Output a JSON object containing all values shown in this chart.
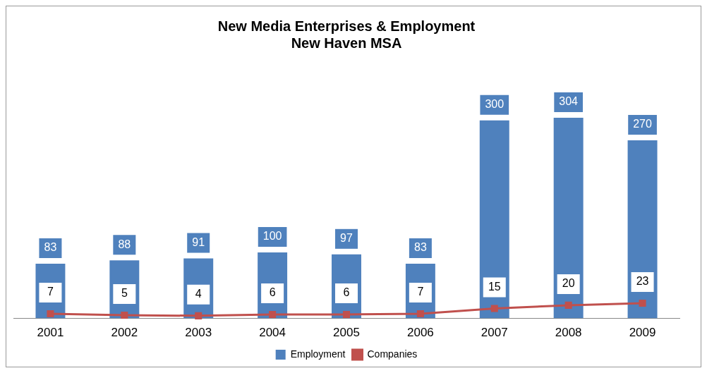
{
  "chart_data": {
    "type": "bar",
    "title": "New Media Enterprises & Employment",
    "subtitle": "New Haven MSA",
    "categories": [
      "2001",
      "2002",
      "2003",
      "2004",
      "2005",
      "2006",
      "2007",
      "2008",
      "2009"
    ],
    "series": [
      {
        "name": "Employment",
        "color": "#4f81bd",
        "values": [
          83,
          88,
          91,
          100,
          97,
          83,
          300,
          304,
          270
        ]
      },
      {
        "name": "Companies",
        "type": "line",
        "color": "#c0504d",
        "values": [
          7,
          5,
          4,
          6,
          6,
          7,
          15,
          20,
          23
        ]
      }
    ],
    "data_labels": true,
    "legend": "bottom",
    "marker": "square",
    "grid": false,
    "tick_labels": "x"
  }
}
